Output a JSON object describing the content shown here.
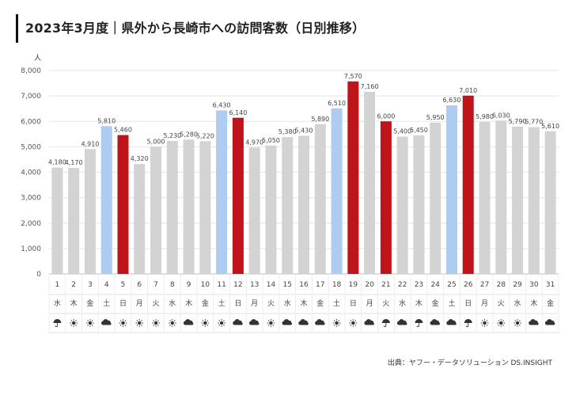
{
  "title": "2023年3月度｜県外から長崎市への訪問客数（日別推移）",
  "source": "出典：ヤフー・データソリューション DS.INSIGHT",
  "colors": {
    "weekday": "#d3d3d3",
    "saturday": "#aecbf2",
    "sunday_holiday": "#c0141b",
    "grid": "#e4e4e4",
    "axis_text": "#555555"
  },
  "chart_data": {
    "type": "bar",
    "ylabel": "人",
    "ylim": [
      0,
      8000
    ],
    "yticks": [
      {
        "v": 0,
        "label": "0"
      },
      {
        "v": 1000,
        "label": "1,000"
      },
      {
        "v": 2000,
        "label": "2,000"
      },
      {
        "v": 3000,
        "label": "3,000"
      },
      {
        "v": 4000,
        "label": "4,000"
      },
      {
        "v": 5000,
        "label": "5,000"
      },
      {
        "v": 6000,
        "label": "6,000"
      },
      {
        "v": 7000,
        "label": "7,000"
      },
      {
        "v": 8000,
        "label": "8,000"
      }
    ],
    "grid": true,
    "days": [
      {
        "day": "1",
        "dow": "水",
        "value": 4180,
        "label": "4,180",
        "type": "weekday",
        "weather": "umbrella-icon"
      },
      {
        "day": "2",
        "dow": "木",
        "value": 4170,
        "label": "4,170",
        "type": "weekday",
        "weather": "sun-icon"
      },
      {
        "day": "3",
        "dow": "金",
        "value": 4910,
        "label": "4,910",
        "type": "weekday",
        "weather": "sun-icon"
      },
      {
        "day": "4",
        "dow": "土",
        "value": 5810,
        "label": "5,810",
        "type": "saturday",
        "weather": "cloud-icon"
      },
      {
        "day": "5",
        "dow": "日",
        "value": 5460,
        "label": "5,460",
        "type": "sunday",
        "weather": "sun-icon"
      },
      {
        "day": "6",
        "dow": "月",
        "value": 4320,
        "label": "4,320",
        "type": "weekday",
        "weather": "sun-icon"
      },
      {
        "day": "7",
        "dow": "火",
        "value": 5000,
        "label": "5,000",
        "type": "weekday",
        "weather": "sun-icon"
      },
      {
        "day": "8",
        "dow": "水",
        "value": 5230,
        "label": "5,230",
        "type": "weekday",
        "weather": "sun-icon"
      },
      {
        "day": "9",
        "dow": "木",
        "value": 5280,
        "label": "5,280",
        "type": "weekday",
        "weather": "cloud-icon"
      },
      {
        "day": "10",
        "dow": "金",
        "value": 5220,
        "label": "5,220",
        "type": "weekday",
        "weather": "sun-icon"
      },
      {
        "day": "11",
        "dow": "土",
        "value": 6430,
        "label": "6,430",
        "type": "saturday",
        "weather": "sun-icon"
      },
      {
        "day": "12",
        "dow": "日",
        "value": 6140,
        "label": "6,140",
        "type": "sunday",
        "weather": "cloud-icon"
      },
      {
        "day": "13",
        "dow": "月",
        "value": 4970,
        "label": "4,970",
        "type": "weekday",
        "weather": "cloud-icon"
      },
      {
        "day": "14",
        "dow": "火",
        "value": 5050,
        "label": "5,050",
        "type": "weekday",
        "weather": "sun-icon"
      },
      {
        "day": "15",
        "dow": "水",
        "value": 5380,
        "label": "5,380",
        "type": "weekday",
        "weather": "cloud-icon"
      },
      {
        "day": "16",
        "dow": "木",
        "value": 5430,
        "label": "5,430",
        "type": "weekday",
        "weather": "cloud-icon"
      },
      {
        "day": "17",
        "dow": "金",
        "value": 5890,
        "label": "5,890",
        "type": "weekday",
        "weather": "cloud-icon"
      },
      {
        "day": "18",
        "dow": "土",
        "value": 6510,
        "label": "6,510",
        "type": "saturday",
        "weather": "sun-icon"
      },
      {
        "day": "19",
        "dow": "日",
        "value": 7570,
        "label": "7,570",
        "type": "sunday",
        "weather": "sun-icon"
      },
      {
        "day": "20",
        "dow": "月",
        "value": 7160,
        "label": "7,160",
        "type": "weekday",
        "weather": "cloud-icon"
      },
      {
        "day": "21",
        "dow": "火",
        "value": 6000,
        "label": "6,000",
        "type": "sunday",
        "weather": "umbrella-icon"
      },
      {
        "day": "22",
        "dow": "水",
        "value": 5400,
        "label": "5,400",
        "type": "weekday",
        "weather": "cloud-icon"
      },
      {
        "day": "23",
        "dow": "木",
        "value": 5450,
        "label": "5,450",
        "type": "weekday",
        "weather": "umbrella-icon"
      },
      {
        "day": "24",
        "dow": "金",
        "value": 5950,
        "label": "5,950",
        "type": "weekday",
        "weather": "cloud-icon"
      },
      {
        "day": "25",
        "dow": "土",
        "value": 6630,
        "label": "6,630",
        "type": "saturday",
        "weather": "cloud-icon"
      },
      {
        "day": "26",
        "dow": "日",
        "value": 7010,
        "label": "7,010",
        "type": "sunday",
        "weather": "umbrella-icon"
      },
      {
        "day": "27",
        "dow": "月",
        "value": 5980,
        "label": "5,980",
        "type": "weekday",
        "weather": "sun-icon"
      },
      {
        "day": "28",
        "dow": "火",
        "value": 6030,
        "label": "6,030",
        "type": "weekday",
        "weather": "sun-icon"
      },
      {
        "day": "29",
        "dow": "水",
        "value": 5790,
        "label": "5,790",
        "type": "weekday",
        "weather": "sun-icon"
      },
      {
        "day": "30",
        "dow": "木",
        "value": 5770,
        "label": "5,770",
        "type": "weekday",
        "weather": "cloud-icon"
      },
      {
        "day": "31",
        "dow": "金",
        "value": 5610,
        "label": "5,610",
        "type": "weekday",
        "weather": "cloud-icon"
      }
    ]
  }
}
